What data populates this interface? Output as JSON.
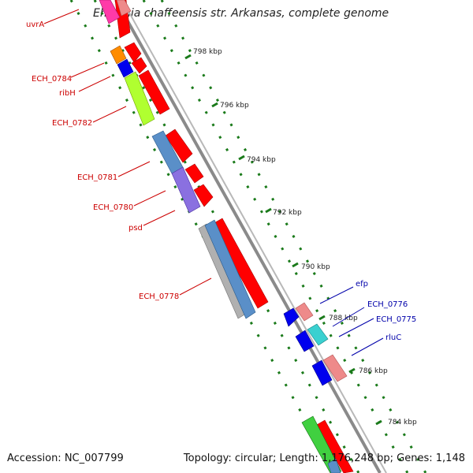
{
  "title": "Ehrlichia chaffeensis str. Arkansas, complete genome",
  "accession": "Accession: NC_007799",
  "topology": "Topology: circular; Length: 1,176,248 bp; Genes: 1,148",
  "ticks": [
    {
      "label": "798 kbp"
    },
    {
      "label": "796 kbp"
    },
    {
      "label": "794 kbp"
    },
    {
      "label": "792 kbp"
    },
    {
      "label": "790 kbp"
    },
    {
      "label": "788 kbp"
    },
    {
      "label": "786 kbp"
    },
    {
      "label": "784 kbp"
    }
  ],
  "genes_left": [
    {
      "label": "uvrA"
    },
    {
      "label": "ECH_0784"
    },
    {
      "label": "ribH"
    },
    {
      "label": "ECH_0782"
    },
    {
      "label": "ECH_0781"
    },
    {
      "label": "ECH_0780"
    },
    {
      "label": "psd"
    },
    {
      "label": "ECH_0778"
    }
  ],
  "genes_right": [
    {
      "label": "efp"
    },
    {
      "label": "ECH_0776"
    },
    {
      "label": "ECH_0775"
    },
    {
      "label": "rluC"
    }
  ],
  "colors": {
    "left_label": "#cc0000",
    "right_label": "#0000aa",
    "backbone": "#888888",
    "tick_dots": "#1a7a1a",
    "cds_red": "#ff0000"
  }
}
